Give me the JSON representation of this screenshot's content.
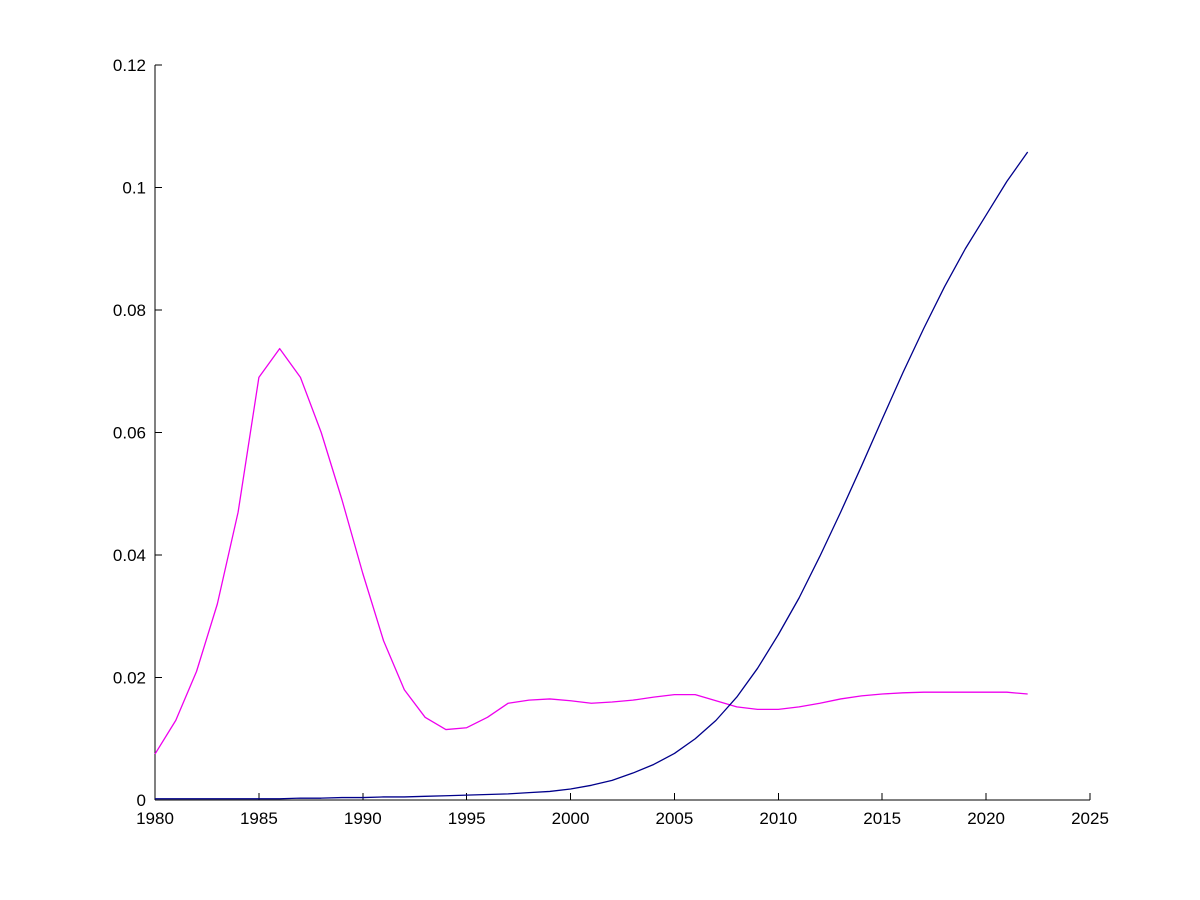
{
  "figure": {
    "background": "#ffffff"
  },
  "chart_data": {
    "type": "line",
    "title": "",
    "xlabel": "",
    "ylabel": "",
    "grid": false,
    "legend": null,
    "background": "#ffffff",
    "axis_color": "#000000",
    "xlim": [
      1980,
      2025
    ],
    "ylim": [
      0,
      0.12
    ],
    "xticks": [
      1980,
      1985,
      1990,
      1995,
      2000,
      2005,
      2010,
      2015,
      2020,
      2025
    ],
    "xtick_labels": [
      "1980",
      "1985",
      "1990",
      "1995",
      "2000",
      "2005",
      "2010",
      "2015",
      "2020",
      "2025"
    ],
    "yticks": [
      0,
      0.02,
      0.04,
      0.06,
      0.08,
      0.1,
      0.12
    ],
    "ytick_labels": [
      "0",
      "0.02",
      "0.04",
      "0.06",
      "0.08",
      "0.1",
      "0.12"
    ],
    "x": [
      1980,
      1981,
      1982,
      1983,
      1984,
      1985,
      1986,
      1987,
      1988,
      1989,
      1990,
      1991,
      1992,
      1993,
      1994,
      1995,
      1996,
      1997,
      1998,
      1999,
      2000,
      2001,
      2002,
      2003,
      2004,
      2005,
      2006,
      2007,
      2008,
      2009,
      2010,
      2011,
      2012,
      2013,
      2014,
      2015,
      2016,
      2017,
      2018,
      2019,
      2020,
      2021,
      2022
    ],
    "series": [
      {
        "name": "magenta-series",
        "color": "#ee00ee",
        "values": [
          0.0075,
          0.013,
          0.021,
          0.032,
          0.047,
          0.069,
          0.0737,
          0.069,
          0.06,
          0.049,
          0.037,
          0.026,
          0.018,
          0.0135,
          0.0115,
          0.0118,
          0.0135,
          0.0158,
          0.0163,
          0.0165,
          0.0162,
          0.0158,
          0.016,
          0.0163,
          0.0168,
          0.0172,
          0.0172,
          0.0162,
          0.0152,
          0.0148,
          0.0148,
          0.0152,
          0.0158,
          0.0165,
          0.017,
          0.0173,
          0.0175,
          0.0176,
          0.0176,
          0.0176,
          0.0176,
          0.0176,
          0.0173
        ]
      },
      {
        "name": "blue-series",
        "color": "#00008b",
        "values": [
          0.0002,
          0.0002,
          0.0002,
          0.0002,
          0.0002,
          0.0002,
          0.0002,
          0.0003,
          0.0003,
          0.0004,
          0.0004,
          0.0005,
          0.0005,
          0.0006,
          0.0007,
          0.0008,
          0.0009,
          0.001,
          0.0012,
          0.0014,
          0.0018,
          0.0024,
          0.0032,
          0.0044,
          0.0058,
          0.0076,
          0.01,
          0.013,
          0.0168,
          0.0215,
          0.027,
          0.033,
          0.0398,
          0.047,
          0.0545,
          0.0622,
          0.0698,
          0.077,
          0.0838,
          0.09,
          0.0955,
          0.101,
          0.1058
        ]
      }
    ]
  }
}
